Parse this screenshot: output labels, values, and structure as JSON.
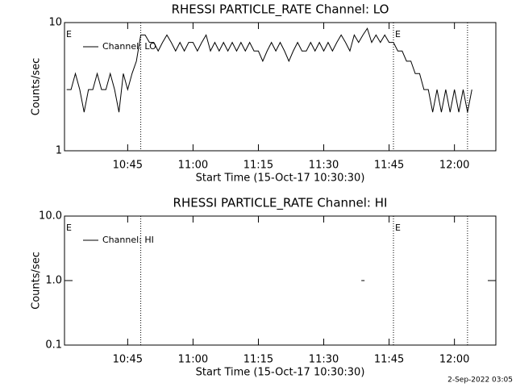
{
  "chart_data": [
    {
      "type": "line",
      "title": "RHESSI PARTICLE_RATE Channel: LO",
      "xlabel": "Start Time (15-Oct-17 10:30:30)",
      "ylabel": "Counts/sec",
      "log_y": true,
      "ylim": [
        1,
        10
      ],
      "yticks": [
        1,
        10
      ],
      "xlim": [
        "10:30:30",
        "12:09:30"
      ],
      "xticks": [
        "10:45",
        "11:00",
        "11:15",
        "11:30",
        "11:45",
        "12:00"
      ],
      "vlines": [
        "10:48",
        "11:46",
        "12:03"
      ],
      "annotations": [
        {
          "text": "E",
          "x": "10:30:30"
        },
        {
          "text": "E",
          "x": "11:46"
        }
      ],
      "x": [
        "10:31",
        "10:32",
        "10:33",
        "10:34",
        "10:35",
        "10:36",
        "10:37",
        "10:38",
        "10:39",
        "10:40",
        "10:41",
        "10:42",
        "10:43",
        "10:44",
        "10:45",
        "10:46",
        "10:47",
        "10:48",
        "10:49",
        "10:50",
        "10:51",
        "10:52",
        "10:53",
        "10:54",
        "10:55",
        "10:56",
        "10:57",
        "10:58",
        "10:59",
        "11:00",
        "11:01",
        "11:02",
        "11:03",
        "11:04",
        "11:05",
        "11:06",
        "11:07",
        "11:08",
        "11:09",
        "11:10",
        "11:11",
        "11:12",
        "11:13",
        "11:14",
        "11:15",
        "11:16",
        "11:17",
        "11:18",
        "11:19",
        "11:20",
        "11:21",
        "11:22",
        "11:23",
        "11:24",
        "11:25",
        "11:26",
        "11:27",
        "11:28",
        "11:29",
        "11:30",
        "11:31",
        "11:32",
        "11:33",
        "11:34",
        "11:35",
        "11:36",
        "11:37",
        "11:38",
        "11:39",
        "11:40",
        "11:41",
        "11:42",
        "11:43",
        "11:44",
        "11:45",
        "11:46",
        "11:47",
        "11:48",
        "11:49",
        "11:50",
        "11:51",
        "11:52",
        "11:53",
        "11:54",
        "11:55",
        "11:56",
        "11:57",
        "11:58",
        "11:59",
        "12:00",
        "12:01",
        "12:02",
        "12:03",
        "12:04"
      ],
      "series": [
        {
          "name": "Channel: LO",
          "color": "#000000",
          "values": [
            3,
            3,
            4,
            3,
            2,
            3,
            3,
            4,
            3,
            3,
            4,
            3,
            2,
            4,
            3,
            4,
            5,
            8,
            8,
            7,
            7,
            6,
            7,
            8,
            7,
            6,
            7,
            6,
            7,
            7,
            6,
            7,
            8,
            6,
            7,
            6,
            7,
            6,
            7,
            6,
            7,
            6,
            7,
            6,
            6,
            5,
            6,
            7,
            6,
            7,
            6,
            5,
            6,
            7,
            6,
            6,
            7,
            6,
            7,
            6,
            7,
            6,
            7,
            8,
            7,
            6,
            8,
            7,
            8,
            9,
            7,
            8,
            7,
            8,
            7,
            7,
            6,
            6,
            5,
            5,
            4,
            4,
            3,
            3,
            2,
            3,
            2,
            3,
            2,
            3,
            2,
            3,
            2,
            3
          ]
        }
      ]
    },
    {
      "type": "line",
      "title": "RHESSI PARTICLE_RATE Channel: HI",
      "xlabel": "Start Time (15-Oct-17 10:30:30)",
      "ylabel": "Counts/sec",
      "log_y": true,
      "ylim": [
        0.1,
        10
      ],
      "yticks": [
        0.1,
        {
          "value": 1,
          "label": "1.0"
        },
        {
          "value": 10,
          "label": "10.0"
        }
      ],
      "xlim": [
        "10:30:30",
        "12:09:30"
      ],
      "xticks": [
        "10:45",
        "11:00",
        "11:15",
        "11:30",
        "11:45",
        "12:00"
      ],
      "vlines": [
        "10:48",
        "11:46",
        "12:03"
      ],
      "annotations": [
        {
          "text": "E",
          "x": "10:30:30"
        },
        {
          "text": "E",
          "x": "11:46"
        }
      ],
      "x": [
        "11:39"
      ],
      "series": [
        {
          "name": "Channel: HI",
          "color": "#000000",
          "values": [
            1
          ]
        }
      ]
    }
  ],
  "footer": "2-Sep-2022 03:05"
}
